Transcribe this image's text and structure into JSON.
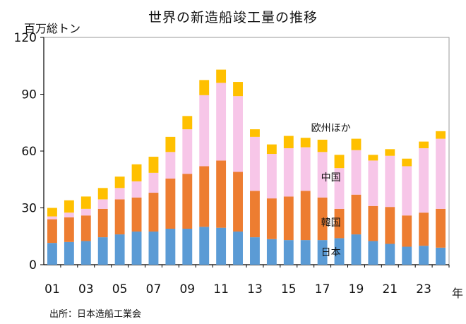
{
  "title": "世界の新造船竣工量の推移",
  "unit_label": "百万総トン",
  "source": "出所：日本造船工業会",
  "year_suffix": "年",
  "colors": {
    "japan": "#5b9bd5",
    "korea": "#ed7d31",
    "china": "#f7c6e8",
    "europe_others": "#ffc000",
    "axis": "#000000"
  },
  "chart_data": {
    "type": "bar",
    "stacked": true,
    "title": "世界の新造船竣工量の推移",
    "ylabel": "百万総トン",
    "ylim": [
      0,
      120
    ],
    "yticks": [
      "0",
      "30",
      "60",
      "90",
      "120"
    ],
    "yticks_values": [
      0,
      30,
      60,
      90,
      120
    ],
    "categories": [
      "01",
      "02",
      "03",
      "04",
      "05",
      "06",
      "07",
      "08",
      "09",
      "10",
      "11",
      "12",
      "13",
      "14",
      "15",
      "16",
      "17",
      "18",
      "19",
      "20",
      "21",
      "22",
      "23",
      "24"
    ],
    "x_tick_labels": [
      "01",
      "",
      "03",
      "",
      "05",
      "",
      "07",
      "",
      "09",
      "",
      "11",
      "",
      "13",
      "",
      "15",
      "",
      "17",
      "",
      "19",
      "",
      "21",
      "",
      "23",
      ""
    ],
    "grid": false,
    "series": [
      {
        "name": "日本",
        "color_key": "japan",
        "values": [
          11.5,
          12.0,
          12.5,
          14.5,
          16.0,
          17.5,
          17.5,
          19.0,
          19.0,
          20.0,
          19.5,
          17.5,
          14.5,
          13.5,
          13.0,
          13.0,
          13.0,
          14.0,
          16.0,
          12.5,
          11.0,
          9.5,
          10.0,
          9.0
        ]
      },
      {
        "name": "韓国",
        "color_key": "korea",
        "values": [
          12.5,
          13.0,
          13.5,
          15.0,
          18.5,
          18.0,
          20.5,
          26.5,
          29.0,
          32.0,
          35.5,
          31.5,
          24.5,
          21.5,
          23.0,
          26.0,
          22.5,
          15.5,
          21.0,
          18.5,
          19.5,
          16.5,
          17.5,
          20.5
        ]
      },
      {
        "name": "中国",
        "color_key": "china",
        "values": [
          1.5,
          2.5,
          3.5,
          5.0,
          6.0,
          8.5,
          10.5,
          14.0,
          23.5,
          37.5,
          41.0,
          40.0,
          28.5,
          23.5,
          25.5,
          23.0,
          24.0,
          21.5,
          23.5,
          24.0,
          27.0,
          26.0,
          34.0,
          37.0
        ]
      },
      {
        "name": "欧州ほか",
        "color_key": "europe_others",
        "values": [
          4.5,
          6.5,
          6.5,
          6.0,
          6.0,
          9.0,
          8.5,
          8.0,
          7.0,
          8.0,
          7.0,
          7.5,
          4.0,
          5.0,
          6.5,
          5.0,
          6.5,
          7.0,
          6.0,
          3.0,
          3.5,
          4.0,
          3.5,
          4.0
        ]
      }
    ],
    "annotations": [
      {
        "text": "欧州ほか",
        "anchor_category": "17"
      },
      {
        "text": "中国",
        "anchor_category": "17"
      },
      {
        "text": "韓国",
        "anchor_category": "17"
      },
      {
        "text": "日本",
        "anchor_category": "17"
      }
    ]
  }
}
